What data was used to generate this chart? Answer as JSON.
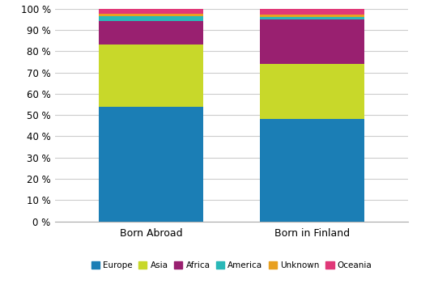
{
  "categories": [
    "Born Abroad",
    "Born in Finland"
  ],
  "series": {
    "Europe": [
      54.0,
      48.0
    ],
    "Asia": [
      29.0,
      26.0
    ],
    "Africa": [
      11.0,
      21.0
    ],
    "America": [
      2.5,
      1.0
    ],
    "Unknown": [
      1.0,
      1.0
    ],
    "Oceania": [
      2.5,
      3.0
    ]
  },
  "colors": {
    "Europe": "#1b7eb5",
    "Asia": "#c8d82a",
    "Africa": "#992070",
    "America": "#2ab8b8",
    "Unknown": "#e8a020",
    "Oceania": "#e03878"
  },
  "ylim": [
    0,
    100
  ],
  "ytick_labels": [
    "0 %",
    "10 %",
    "20 %",
    "30 %",
    "40 %",
    "50 %",
    "60 %",
    "70 %",
    "80 %",
    "90 %",
    "100 %"
  ],
  "ytick_values": [
    0,
    10,
    20,
    30,
    40,
    50,
    60,
    70,
    80,
    90,
    100
  ],
  "bar_width": 0.65,
  "background_color": "#ffffff",
  "grid_color": "#cccccc",
  "legend_order": [
    "Europe",
    "Asia",
    "Africa",
    "America",
    "Unknown",
    "Oceania"
  ]
}
